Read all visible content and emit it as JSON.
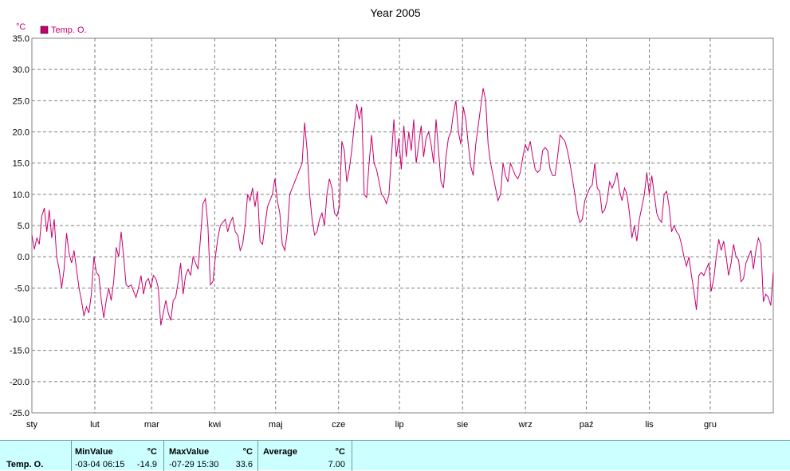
{
  "chart_data": {
    "type": "line",
    "title": "Year 2005",
    "unit": "°C",
    "legend": [
      {
        "name": "Temp. O.",
        "color": "#c8006e"
      }
    ],
    "legend_position": "top-left",
    "grid": true,
    "ylim": [
      -25.0,
      35.0
    ],
    "y_ticks": [
      "35.0",
      "30.0",
      "25.0",
      "20.0",
      "15.0",
      "10.0",
      "5.0",
      "0.0",
      "-5.0",
      "-10.0",
      "-15.0",
      "-20.0",
      "-25.0"
    ],
    "x_ticks": [
      "sty",
      "lut",
      "mar",
      "kwi",
      "maj",
      "cze",
      "lip",
      "sie",
      "wrz",
      "paź",
      "lis",
      "gru"
    ],
    "series": [
      {
        "name": "Temp. O.",
        "color": "#c8006e",
        "day_values": [
          3.5,
          1.2,
          3,
          2,
          6.5,
          7.8,
          4,
          7.5,
          3,
          6,
          0,
          -2,
          -5,
          -2,
          3.8,
          0.5,
          -1,
          1,
          -2,
          -5,
          -7,
          -9.5,
          -8,
          -9,
          -6,
          0,
          -2.5,
          -3,
          -7,
          -9.8,
          -7,
          -5,
          -7,
          -4,
          1.5,
          0,
          4,
          0,
          -4.5,
          -4.8,
          -4.5,
          -5.5,
          -6.5,
          -5,
          -3,
          -6,
          -4,
          -3.5,
          -5,
          -3,
          -3.5,
          -5,
          -11,
          -9,
          -7,
          -9,
          -10.2,
          -7,
          -6.5,
          -4,
          -1,
          -6,
          -3,
          -2,
          -3,
          0,
          -1,
          -2,
          3,
          8.5,
          9.3,
          5,
          -4.5,
          -4,
          0,
          3,
          5,
          5.5,
          6,
          4,
          5.5,
          6.3,
          4,
          3.5,
          1,
          2,
          5,
          10,
          9,
          11,
          8,
          10.5,
          2.5,
          2,
          5,
          8,
          9,
          10,
          12.5,
          9,
          7,
          2,
          1,
          4,
          10,
          11,
          12,
          13,
          14,
          15,
          21.5,
          17,
          10,
          6,
          3.5,
          4,
          6,
          7,
          5,
          10,
          12.5,
          11,
          7,
          6.5,
          8,
          18.5,
          17,
          12,
          14,
          17,
          21,
          24.5,
          22,
          24,
          10,
          9.5,
          15,
          19.5,
          15,
          14,
          12,
          10,
          9.5,
          8.5,
          10,
          16,
          22,
          16,
          19,
          14,
          21,
          16,
          20,
          17,
          22,
          15,
          18,
          21,
          16,
          19,
          20,
          18,
          15,
          22,
          17,
          12,
          11,
          16,
          19,
          20,
          23,
          25,
          20,
          18,
          24,
          22,
          18,
          14.5,
          13,
          18,
          21,
          24,
          27,
          25,
          18,
          15,
          13,
          11,
          9,
          10,
          15,
          13,
          12,
          15,
          14,
          13,
          12.5,
          13.5,
          16,
          18,
          17,
          18.5,
          16,
          14,
          13.5,
          14,
          17,
          17.5,
          17,
          14,
          13,
          13,
          16,
          19.5,
          19,
          18.5,
          17,
          15,
          12.5,
          10,
          7,
          5.5,
          6,
          9,
          10,
          11,
          11.5,
          15,
          11,
          10.5,
          7,
          7.5,
          9,
          12,
          11,
          12,
          13.5,
          10.5,
          9,
          11,
          10,
          7,
          3,
          5,
          2.5,
          6,
          8,
          10,
          13.5,
          10,
          13,
          10,
          7,
          6,
          5.5,
          10,
          10.5,
          8,
          4,
          5,
          4,
          3.5,
          2,
          0,
          -1.5,
          0,
          -3,
          -5.5,
          -8.5,
          -3,
          -2.5,
          -3,
          -2,
          -1,
          -5.5,
          -3.5,
          0,
          2.8,
          1,
          2.5,
          0,
          -3,
          -1,
          2,
          0,
          -0.5,
          -4,
          -3.5,
          -1,
          0,
          1,
          -2,
          1,
          3,
          2,
          -7.2,
          -6,
          -6.5,
          -7.8,
          -2.5
        ]
      }
    ],
    "stats": {
      "row_label": "Temp. O.",
      "min_header": "MinValue",
      "min_unit": "°C",
      "min_date": "-03-04  06:15",
      "min_value": "-14.9",
      "max_header": "MaxValue",
      "max_unit": "°C",
      "max_date": "-07-29  15:30",
      "max_value": "33.6",
      "avg_header": "Average",
      "avg_unit": "°C",
      "avg_value": "7.00"
    }
  }
}
